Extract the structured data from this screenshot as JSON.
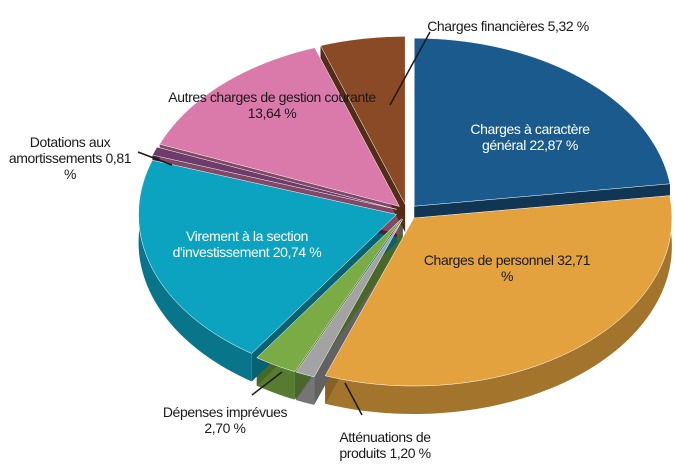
{
  "chart_data": {
    "type": "pie",
    "categories": [
      "Charges à caractère général",
      "Charges de personnel",
      "Atténuations de produits",
      "Dépenses imprévues",
      "Virement à la section d'investissement",
      "Dotations aux amortissements",
      "Autres charges de gestion courante",
      "Charges financières"
    ],
    "values": [
      22.87,
      32.71,
      1.2,
      2.7,
      20.74,
      0.81,
      13.64,
      5.32
    ],
    "value_labels": [
      "22,87 %",
      "32,71 %",
      "1,20 %",
      "2,70 %",
      "20,74 %",
      "0,81 %",
      "13,64 %",
      "5,32 %"
    ],
    "colors": [
      "#1b5a8c",
      "#e3a23d",
      "#a3a3a3",
      "#7aab45",
      "#0ba3bf",
      "#6d3b6c",
      "#d97aaa",
      "#8b4a26"
    ]
  }
}
